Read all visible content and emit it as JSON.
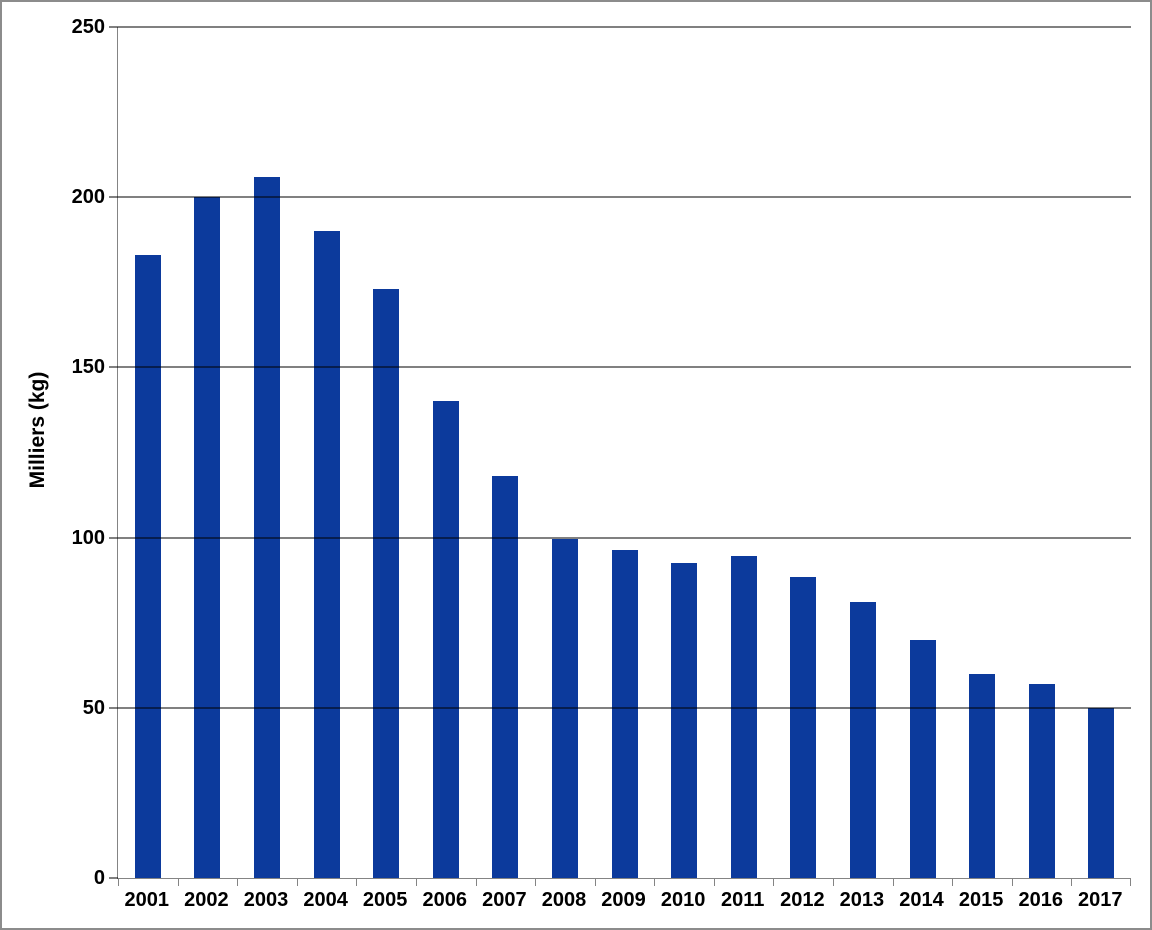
{
  "chart_data": {
    "type": "bar",
    "title": "",
    "xlabel": "",
    "ylabel": "Milliers (kg)",
    "categories": [
      "2001",
      "2002",
      "2003",
      "2004",
      "2005",
      "2006",
      "2007",
      "2008",
      "2009",
      "2010",
      "2011",
      "2012",
      "2013",
      "2014",
      "2015",
      "2016",
      "2017"
    ],
    "values": [
      183,
      200,
      206,
      190,
      173,
      140,
      118,
      99.5,
      96.5,
      92.5,
      94.5,
      88.5,
      81,
      70,
      60,
      57,
      50
    ],
    "ylim": [
      0,
      250
    ],
    "yticks": [
      0,
      50,
      100,
      150,
      200,
      250
    ],
    "grid": true,
    "legend_position": "none",
    "colors": {
      "bar_fill": "#0c3a9c",
      "gridline": "#000000",
      "axis_line": "#848484",
      "tick_label": "#000000",
      "background": "#ffffff",
      "frame_border": "#8c8c8c"
    }
  }
}
